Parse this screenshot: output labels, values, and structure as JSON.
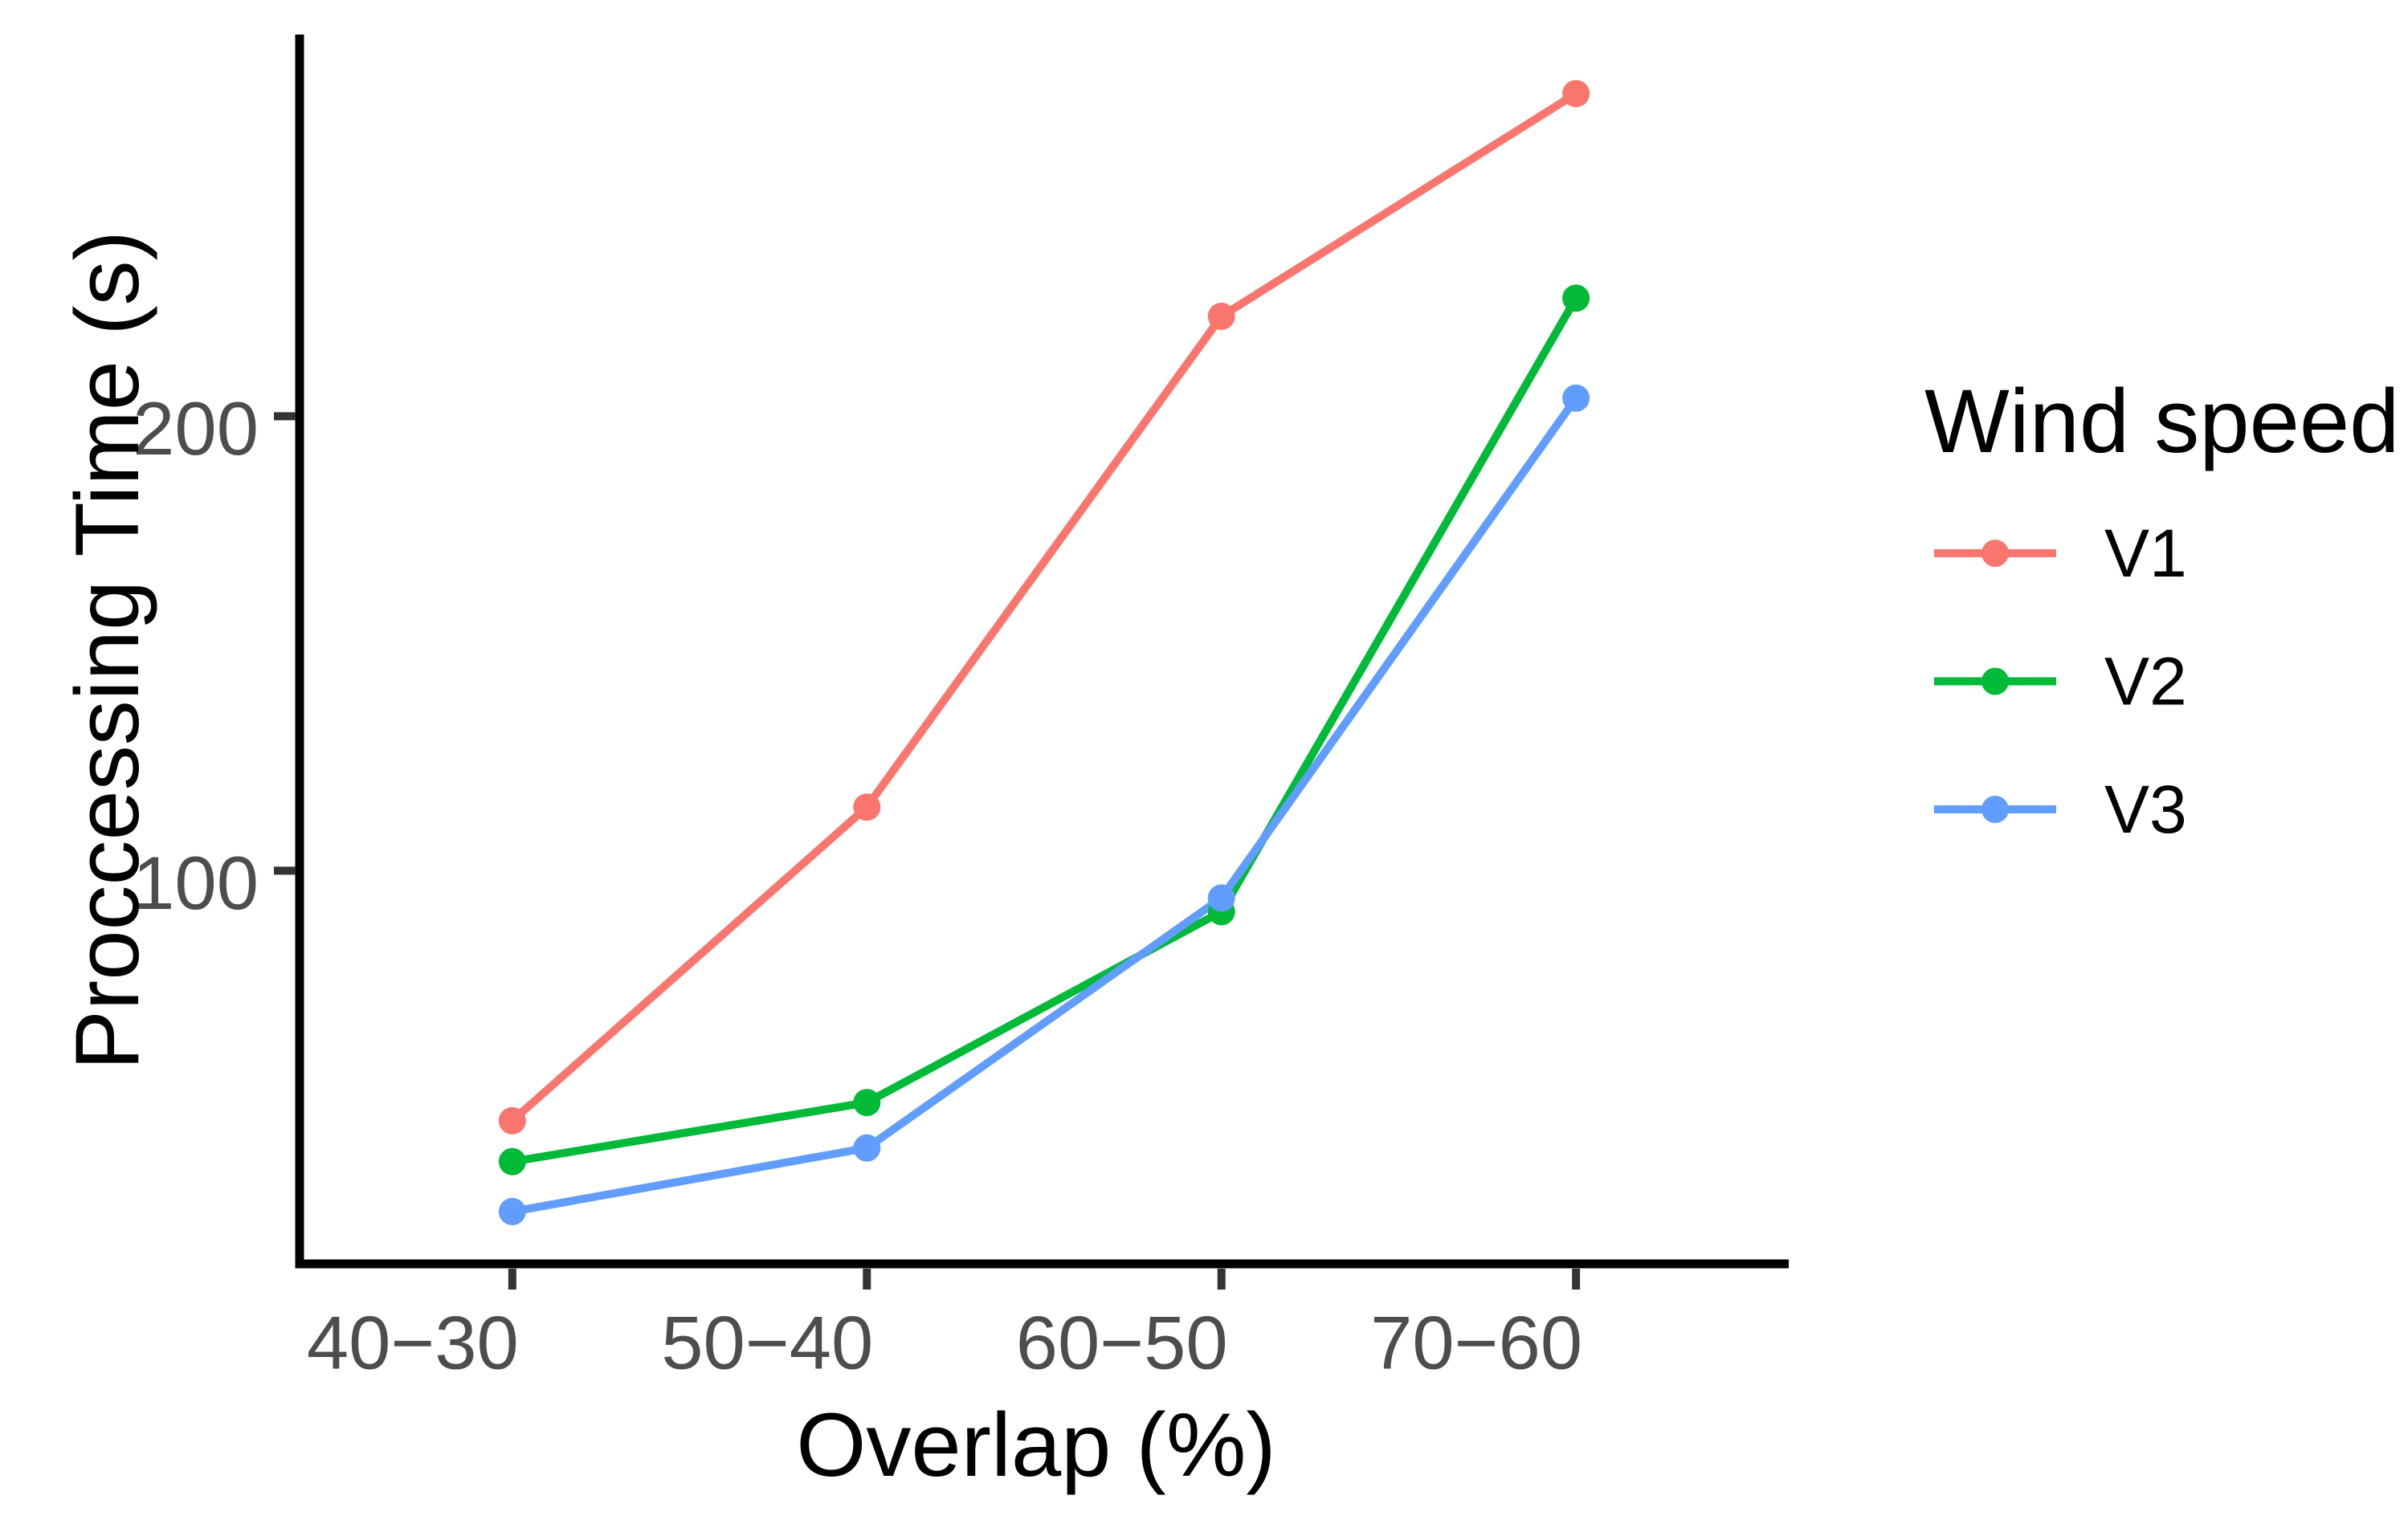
{
  "chart_data": {
    "type": "line",
    "categories": [
      "40−30",
      "50−40",
      "60−50",
      "70−60"
    ],
    "series": [
      {
        "name": "V1",
        "color": "#F8766D",
        "values": [
          45,
          114,
          222,
          271
        ]
      },
      {
        "name": "V2",
        "color": "#00BA38",
        "values": [
          36,
          49,
          91,
          226
        ]
      },
      {
        "name": "V3",
        "color": "#619CFF",
        "values": [
          25,
          39,
          94,
          204
        ]
      }
    ],
    "xlabel": "Overlap (%)",
    "ylabel": "Proccessing Time (s)",
    "yticks": [
      100,
      200
    ],
    "ylim": [
      13.5,
      284
    ],
    "legend_title": "Wind speed",
    "legend_position": "right",
    "grid": false,
    "marker": "circle"
  },
  "colors": {
    "background": "#FFFFFF",
    "axis_line": "#000000",
    "tick_mark": "#333333",
    "tick_text": "#4D4D4D",
    "title_text": "#000000"
  }
}
